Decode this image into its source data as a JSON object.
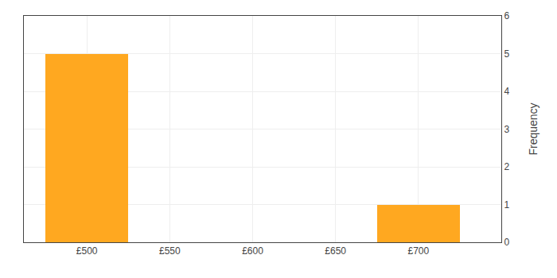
{
  "chart_data": {
    "type": "bar",
    "x": [
      500,
      700
    ],
    "values": [
      5,
      1
    ],
    "color": "#FFA820",
    "xlim": [
      462,
      750
    ],
    "xticks": [
      {
        "value": 500,
        "label": "£500"
      },
      {
        "value": 550,
        "label": "£550"
      },
      {
        "value": 600,
        "label": "£600"
      },
      {
        "value": 650,
        "label": "£650"
      },
      {
        "value": 700,
        "label": "£700"
      }
    ],
    "ylim": [
      0,
      6
    ],
    "yticks": [
      0,
      1,
      2,
      3,
      4,
      5,
      6
    ],
    "ylabel": "Frequency",
    "grid": true
  }
}
